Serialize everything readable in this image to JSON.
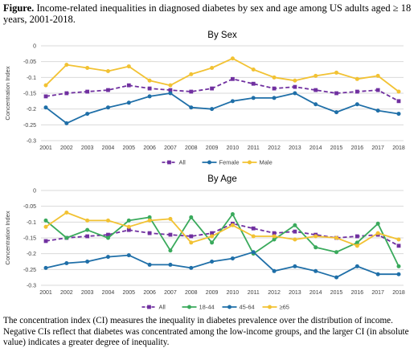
{
  "figure": {
    "label": "Figure.",
    "title": " Income-related inequalities in diagnosed diabetes by sex and age among US adults aged ≥ 18 years, 2001-2018.",
    "caption": "The concentration index (CI) measures the inequality in diabetes prevalence over the distribution of income. Negative CIs reflect that diabetes was concentrated among the low-income groups, and the larger CI (in absolute value) indicates a greater degree of inequality."
  },
  "chart_data": [
    {
      "type": "line",
      "title": "By Sex",
      "xlabel": "",
      "ylabel": "Concentration Index",
      "x": [
        "2001",
        "2002",
        "2003",
        "2004",
        "2005",
        "2006",
        "2007",
        "2008",
        "2009",
        "2010",
        "2011",
        "2012",
        "2013",
        "2014",
        "2015",
        "2016",
        "2017",
        "2018"
      ],
      "yticks": [
        "0",
        "-0.05",
        "-0.1",
        "-0.15",
        "-0.2",
        "-0.25",
        "-0.3"
      ],
      "ylim": [
        -0.3,
        0
      ],
      "grid": true,
      "legend_position": "bottom",
      "series": [
        {
          "name": "All",
          "color": "#7030a0",
          "style": "dashed",
          "marker": "square",
          "values": [
            -0.16,
            -0.15,
            -0.145,
            -0.14,
            -0.125,
            -0.135,
            -0.14,
            -0.145,
            -0.135,
            -0.105,
            -0.12,
            -0.135,
            -0.13,
            -0.14,
            -0.15,
            -0.145,
            -0.14,
            -0.175
          ]
        },
        {
          "name": "Female",
          "color": "#1f6fa8",
          "style": "solid",
          "marker": "circle",
          "values": [
            -0.195,
            -0.245,
            -0.215,
            -0.195,
            -0.18,
            -0.16,
            -0.15,
            -0.195,
            -0.2,
            -0.175,
            -0.165,
            -0.165,
            -0.15,
            -0.185,
            -0.21,
            -0.185,
            -0.205,
            -0.215
          ]
        },
        {
          "name": "Male",
          "color": "#f2c233",
          "style": "solid",
          "marker": "circle",
          "values": [
            -0.125,
            -0.06,
            -0.07,
            -0.08,
            -0.065,
            -0.11,
            -0.125,
            -0.09,
            -0.07,
            -0.04,
            -0.075,
            -0.1,
            -0.11,
            -0.095,
            -0.085,
            -0.105,
            -0.095,
            -0.145
          ]
        }
      ]
    },
    {
      "type": "line",
      "title": "By Age",
      "xlabel": "",
      "ylabel": "Concentration Index",
      "x": [
        "2001",
        "2002",
        "2003",
        "2004",
        "2005",
        "2006",
        "2007",
        "2008",
        "2009",
        "2010",
        "2011",
        "2012",
        "2013",
        "2014",
        "2015",
        "2016",
        "2017",
        "2018"
      ],
      "yticks": [
        "0",
        "-0.05",
        "-0.1",
        "-0.15",
        "-0.2",
        "-0.25",
        "-0.3"
      ],
      "ylim": [
        -0.3,
        0
      ],
      "grid": true,
      "legend_position": "bottom",
      "series": [
        {
          "name": "All",
          "color": "#7030a0",
          "style": "dashed",
          "marker": "square",
          "values": [
            -0.16,
            -0.15,
            -0.145,
            -0.14,
            -0.125,
            -0.135,
            -0.14,
            -0.145,
            -0.135,
            -0.105,
            -0.12,
            -0.135,
            -0.13,
            -0.14,
            -0.15,
            -0.145,
            -0.14,
            -0.175
          ]
        },
        {
          "name": "18-44",
          "color": "#3aaa5c",
          "style": "solid",
          "marker": "circle",
          "values": [
            -0.095,
            -0.15,
            -0.125,
            -0.15,
            -0.095,
            -0.085,
            -0.19,
            -0.085,
            -0.165,
            -0.075,
            -0.2,
            -0.155,
            -0.11,
            -0.18,
            -0.195,
            -0.165,
            -0.105,
            -0.24
          ]
        },
        {
          "name": "45-64",
          "color": "#1f6fa8",
          "style": "solid",
          "marker": "circle",
          "values": [
            -0.245,
            -0.23,
            -0.225,
            -0.21,
            -0.205,
            -0.235,
            -0.235,
            -0.245,
            -0.225,
            -0.215,
            -0.195,
            -0.255,
            -0.24,
            -0.255,
            -0.275,
            -0.24,
            -0.265,
            -0.265
          ]
        },
        {
          "name": "≥65",
          "color": "#f2c233",
          "style": "solid",
          "marker": "circle",
          "values": [
            -0.115,
            -0.07,
            -0.095,
            -0.095,
            -0.115,
            -0.095,
            -0.09,
            -0.165,
            -0.145,
            -0.11,
            -0.145,
            -0.145,
            -0.155,
            -0.145,
            -0.15,
            -0.175,
            -0.135,
            -0.155
          ]
        }
      ]
    }
  ]
}
